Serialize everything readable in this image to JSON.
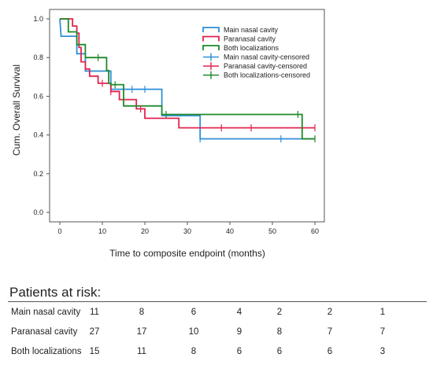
{
  "chart_data": {
    "type": "line",
    "xlabel": "Time to composite endpoint (months)",
    "ylabel": "Cum. Overall Survival",
    "xlim": [
      0,
      60
    ],
    "ylim": [
      0,
      1.0
    ],
    "x_ticks": [
      "0",
      "10",
      "20",
      "30",
      "40",
      "50",
      "60"
    ],
    "y_ticks": [
      "0.0",
      "0.2",
      "0.4",
      "0.6",
      "0.8",
      "1.0"
    ],
    "grid": false,
    "legend_position": "top-right",
    "series": [
      {
        "name": "Main nasal cavity",
        "color": "#2f8fd8",
        "steps": [
          [
            0,
            1.0
          ],
          [
            0.3,
            0.91
          ],
          [
            4,
            0.91
          ],
          [
            4,
            0.82
          ],
          [
            6,
            0.82
          ],
          [
            6,
            0.73
          ],
          [
            12,
            0.73
          ],
          [
            12,
            0.636
          ],
          [
            24,
            0.636
          ],
          [
            24,
            0.5
          ],
          [
            33,
            0.5
          ],
          [
            33,
            0.38
          ],
          [
            60,
            0.38
          ]
        ],
        "censored": [
          [
            17,
            0.636
          ],
          [
            20,
            0.636
          ],
          [
            33,
            0.38
          ],
          [
            52,
            0.38
          ]
        ]
      },
      {
        "name": "Paranasal cavity",
        "color": "#e0234e",
        "steps": [
          [
            0,
            1.0
          ],
          [
            3,
            1.0
          ],
          [
            3,
            0.963
          ],
          [
            4,
            0.963
          ],
          [
            4,
            0.926
          ],
          [
            4.5,
            0.926
          ],
          [
            4.5,
            0.852
          ],
          [
            5,
            0.852
          ],
          [
            5,
            0.778
          ],
          [
            6,
            0.778
          ],
          [
            6,
            0.741
          ],
          [
            7,
            0.741
          ],
          [
            7,
            0.704
          ],
          [
            9,
            0.704
          ],
          [
            9,
            0.667
          ],
          [
            12,
            0.667
          ],
          [
            12,
            0.625
          ],
          [
            14,
            0.625
          ],
          [
            14,
            0.583
          ],
          [
            18,
            0.583
          ],
          [
            18,
            0.535
          ],
          [
            20,
            0.535
          ],
          [
            20,
            0.486
          ],
          [
            28,
            0.486
          ],
          [
            28,
            0.437
          ],
          [
            60,
            0.437
          ]
        ],
        "censored": [
          [
            10,
            0.667
          ],
          [
            12,
            0.625
          ],
          [
            19,
            0.535
          ],
          [
            38,
            0.437
          ],
          [
            45,
            0.437
          ],
          [
            60,
            0.437
          ]
        ]
      },
      {
        "name": "Both localizations",
        "color": "#1e8a2a",
        "steps": [
          [
            0,
            1.0
          ],
          [
            2,
            1.0
          ],
          [
            2,
            0.933
          ],
          [
            4,
            0.933
          ],
          [
            4,
            0.867
          ],
          [
            6,
            0.867
          ],
          [
            6,
            0.8
          ],
          [
            11,
            0.8
          ],
          [
            11,
            0.733
          ],
          [
            11.5,
            0.733
          ],
          [
            11.5,
            0.667
          ],
          [
            12,
            0.667
          ],
          [
            12,
            0.66
          ],
          [
            15,
            0.66
          ],
          [
            15,
            0.55
          ],
          [
            24,
            0.55
          ],
          [
            24,
            0.506
          ],
          [
            57,
            0.506
          ],
          [
            57,
            0.38
          ],
          [
            60,
            0.38
          ]
        ],
        "censored": [
          [
            9,
            0.8
          ],
          [
            13,
            0.66
          ],
          [
            25,
            0.506
          ],
          [
            56,
            0.506
          ],
          [
            60,
            0.38
          ]
        ]
      }
    ],
    "legend": [
      "Main nasal cavity",
      "Paranasal cavity",
      "Both localizations",
      "Main nasal cavity-censored",
      "Paranasal cavity-censored",
      "Both localizations-censored"
    ]
  },
  "risk_table": {
    "title": "Patients at risk:",
    "rows": [
      {
        "label": "Main nasal cavity",
        "values": [
          "11",
          "8",
          "6",
          "4",
          "2",
          "2",
          "1"
        ]
      },
      {
        "label": "Paranasal cavity",
        "values": [
          "27",
          "17",
          "10",
          "9",
          "8",
          "7",
          "7"
        ]
      },
      {
        "label": "Both localizations",
        "values": [
          "15",
          "11",
          "8",
          "6",
          "6",
          "6",
          "3"
        ]
      }
    ]
  }
}
